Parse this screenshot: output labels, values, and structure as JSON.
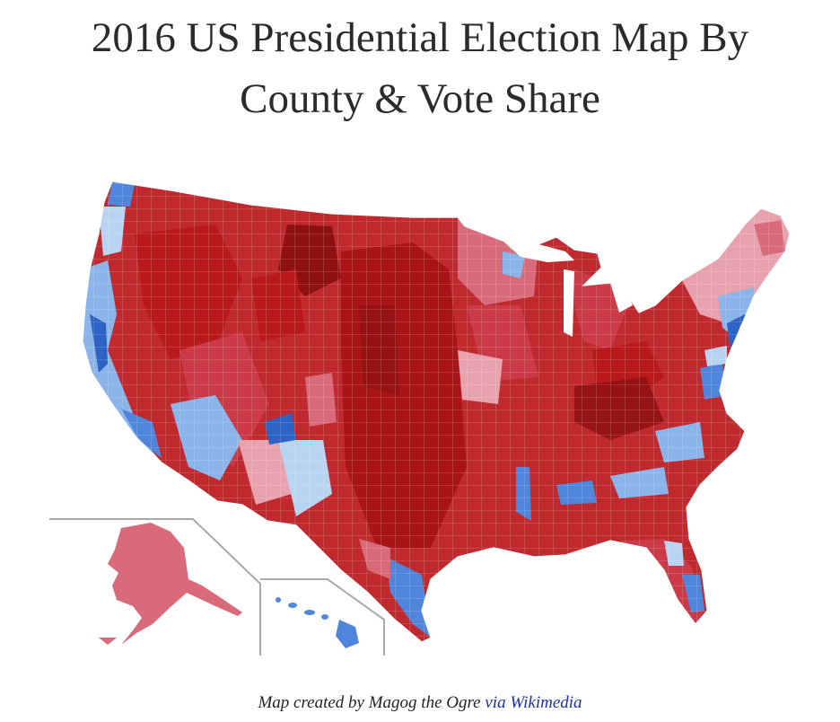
{
  "title": {
    "line1": "2016 US Presidential Election Map By",
    "line2": "County & Vote Share"
  },
  "caption": {
    "prefix": "Map created by Magog the Ogre",
    "via": "via",
    "link_text": "Wikimedia"
  },
  "colors": {
    "rep_darkest": "#8f1010",
    "rep_dark": "#b9191b",
    "rep_mid": "#cb3a46",
    "rep_light": "#d96a79",
    "rep_pale": "#e8a2ad",
    "dem_pale": "#b9d3f2",
    "dem_light": "#8ab4ea",
    "dem_mid": "#4f86dc",
    "dem_dark": "#2c63c4",
    "inset_border": "#a9a9a9",
    "link": "#1a2fb0"
  }
}
